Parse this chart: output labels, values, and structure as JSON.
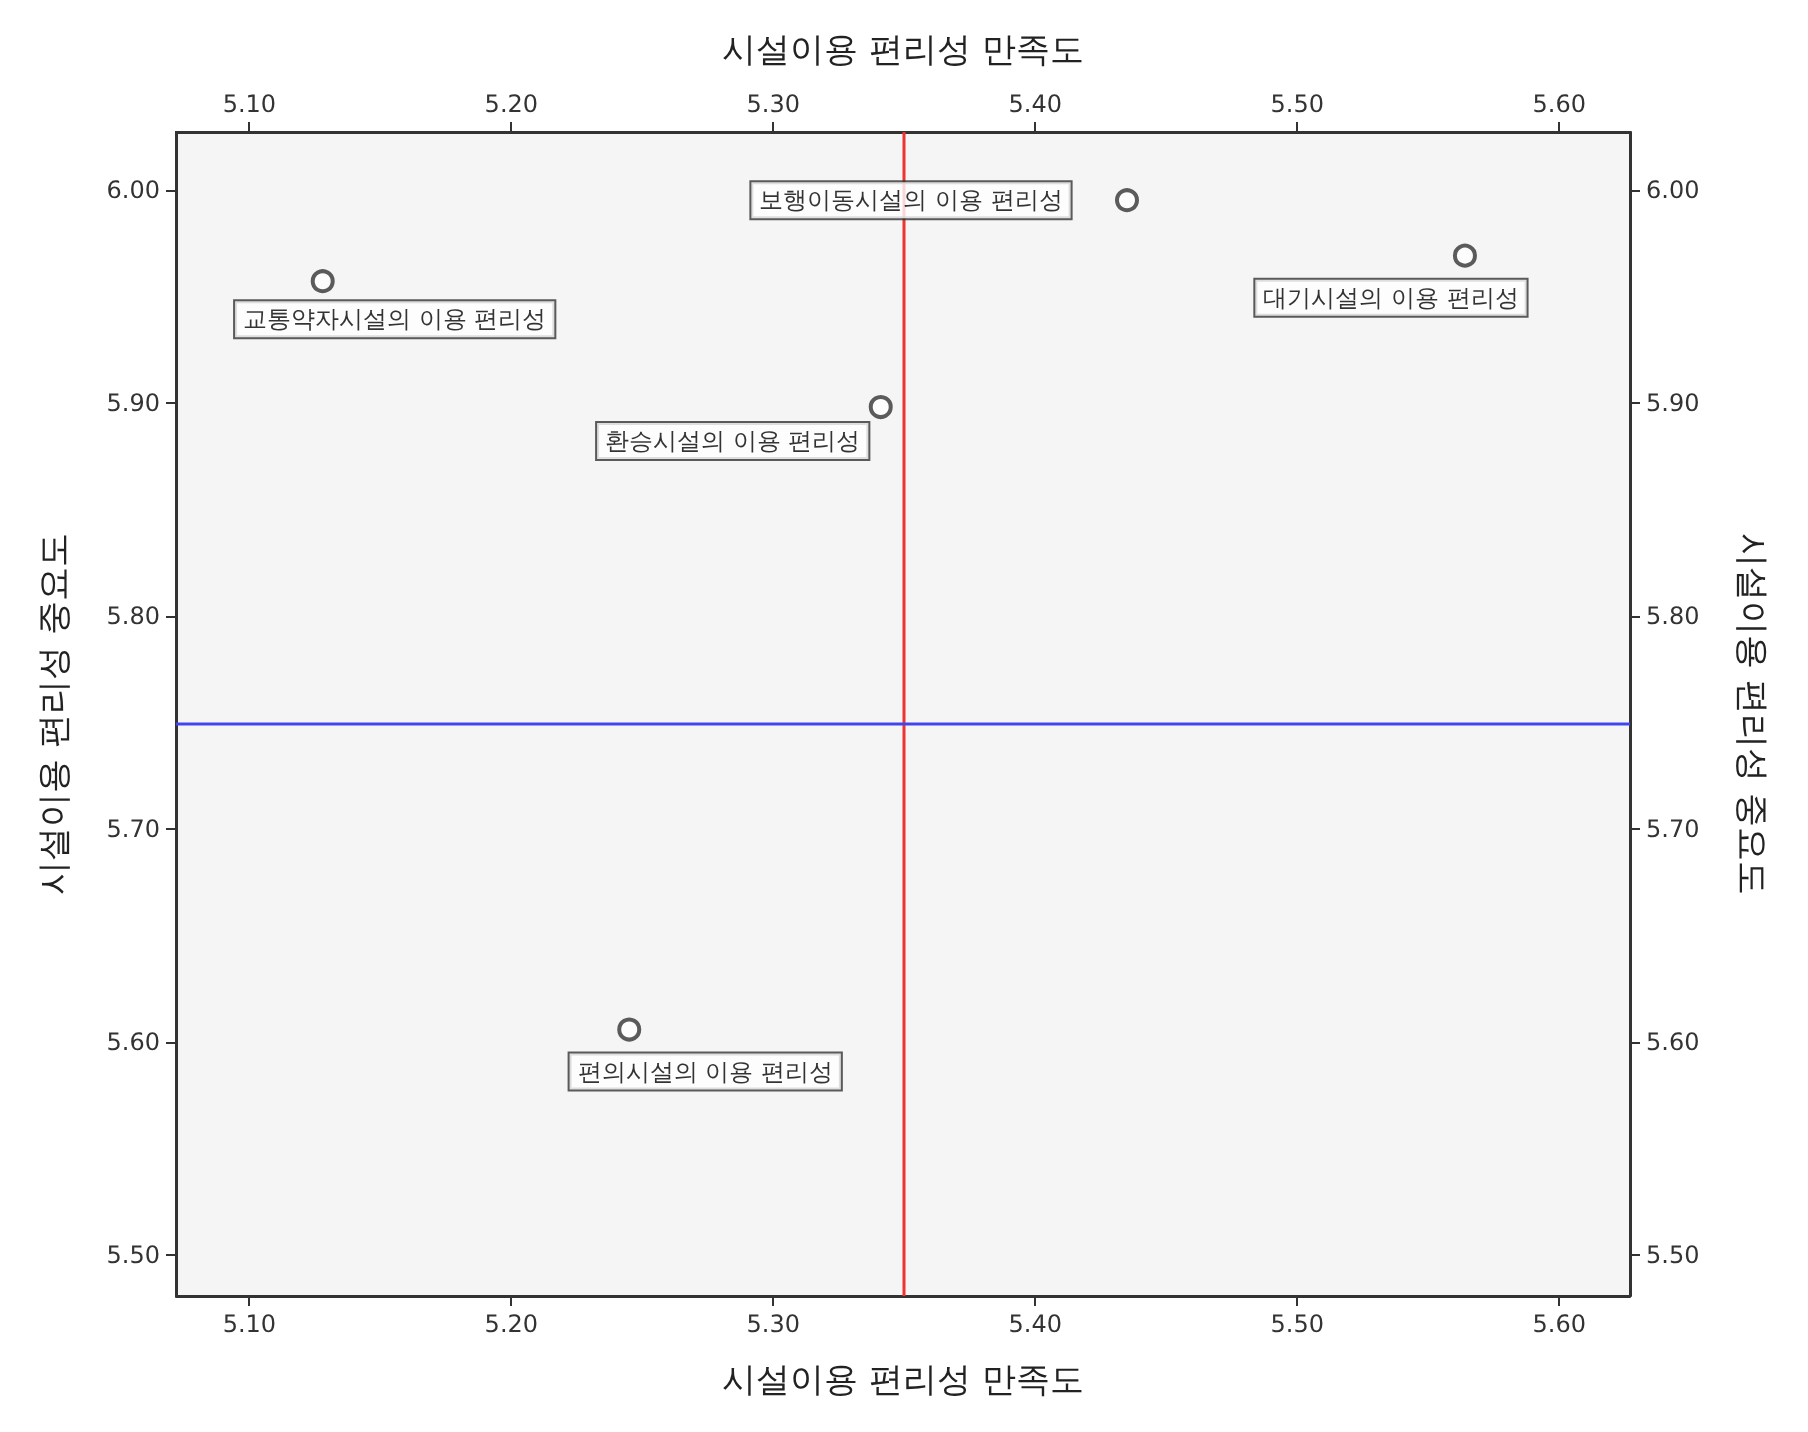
{
  "chart_data": {
    "type": "scatter",
    "xlabel": "시설이용 편리성 만족도",
    "x2label": "시설이용 편리성 만족도",
    "ylabel": "시설이용 편리성 중요도",
    "y2label": "시설이용 편리성 중요도",
    "x": [
      5.128,
      5.435,
      5.564,
      5.341,
      5.245
    ],
    "series": [
      {
        "color": "#333333",
        "values": [
          5.957,
          5.995,
          5.969,
          5.898,
          5.606
        ]
      }
    ],
    "marker": "circle",
    "xlim": [
      5.072,
      5.627
    ],
    "x2lim": [
      5.072,
      5.627
    ],
    "ylim": [
      5.481,
      6.027
    ],
    "y2lim": [
      5.481,
      6.027
    ],
    "xticks": [
      {
        "value": 5.1,
        "label": "5.10"
      },
      {
        "value": 5.2,
        "label": "5.20"
      },
      {
        "value": 5.3,
        "label": "5.30"
      },
      {
        "value": 5.4,
        "label": "5.40"
      },
      {
        "value": 5.5,
        "label": "5.50"
      },
      {
        "value": 5.6,
        "label": "5.60"
      }
    ],
    "x2ticks": [
      {
        "value": 5.1,
        "label": "5.10"
      },
      {
        "value": 5.2,
        "label": "5.20"
      },
      {
        "value": 5.3,
        "label": "5.30"
      },
      {
        "value": 5.4,
        "label": "5.40"
      },
      {
        "value": 5.5,
        "label": "5.50"
      },
      {
        "value": 5.6,
        "label": "5.60"
      }
    ],
    "yticks": [
      {
        "value": 5.5,
        "label": "5.50"
      },
      {
        "value": 5.6,
        "label": "5.60"
      },
      {
        "value": 5.7,
        "label": "5.70"
      },
      {
        "value": 5.8,
        "label": "5.80"
      },
      {
        "value": 5.9,
        "label": "5.90"
      },
      {
        "value": 6.0,
        "label": "6.00"
      }
    ],
    "y2ticks": [
      {
        "value": 5.5,
        "label": "5.50"
      },
      {
        "value": 5.6,
        "label": "5.60"
      },
      {
        "value": 5.7,
        "label": "5.70"
      },
      {
        "value": 5.8,
        "label": "5.80"
      },
      {
        "value": 5.9,
        "label": "5.90"
      },
      {
        "value": 6.0,
        "label": "6.00"
      }
    ],
    "ref_lines": [
      {
        "axis": "x",
        "value": 5.35,
        "color": "#ee3333"
      },
      {
        "axis": "y",
        "value": 5.75,
        "color": "#4444ee"
      }
    ],
    "annotations": [
      {
        "text": "교통약자시설의 이용 편리성",
        "x": 5.128,
        "y": 5.957
      },
      {
        "text": "보행이동시설의 이용 편리성",
        "x": 5.435,
        "y": 5.995
      },
      {
        "text": "대기시설의 이용 편리성",
        "x": 5.564,
        "y": 5.969
      },
      {
        "text": "환승시설의 이용 편리성",
        "x": 5.341,
        "y": 5.898
      },
      {
        "text": "편의시설의 이용 편리성",
        "x": 5.245,
        "y": 5.606
      }
    ],
    "grid": false
  }
}
